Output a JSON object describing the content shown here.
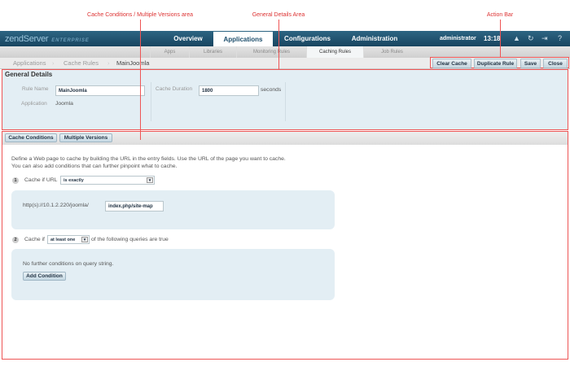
{
  "annotations": {
    "cache_conditions": "Cache Conditions / Multiple Versions area",
    "general_details": "General Details Area",
    "action_bar": "Action Bar"
  },
  "header": {
    "logo": "zendServer",
    "logo_edition": "ENTERPRISE",
    "tabs": [
      "Overview",
      "Applications",
      "Configurations",
      "Administration"
    ],
    "active_tab": "Applications",
    "user": "administrator",
    "time": "13:18"
  },
  "subnav": {
    "items": [
      "Apps",
      "Libraries",
      "Monitoring Rules",
      "Caching Rules",
      "Job Rules"
    ],
    "active": "Caching Rules"
  },
  "breadcrumb": [
    "Applications",
    "Cache Rules",
    "MainJoomla"
  ],
  "actions": {
    "clear_cache": "Clear Cache",
    "duplicate_rule": "Duplicate Rule",
    "save": "Save",
    "close": "Close"
  },
  "general": {
    "title": "General Details",
    "rule_name_label": "Rule Name",
    "rule_name": "MainJoomla",
    "application_label": "Application",
    "application": "Joomla",
    "duration_label": "Cache Duration",
    "duration": "1800",
    "duration_unit": "seconds"
  },
  "tabs": [
    "Cache Conditions",
    "Multiple Versions"
  ],
  "conditions": {
    "intro1": "Define a Web page to cache by building the URL in the entry fields. Use the URL of the page you want to cache.",
    "intro2": "You can also add conditions that can further pinpoint what to cache.",
    "step1_num": "1",
    "step1_label": "Cache if URL",
    "step1_select": "is exactly",
    "url_prefix": "http(s)://10.1.2.220/joomla/",
    "url_path": "index.php/site-map",
    "step2_num": "2",
    "step2_pre": "Cache if",
    "step2_select": "at least one",
    "step2_post": "of the following queries are true",
    "no_conditions": "No further conditions on query string.",
    "add_condition": "Add Condition"
  }
}
